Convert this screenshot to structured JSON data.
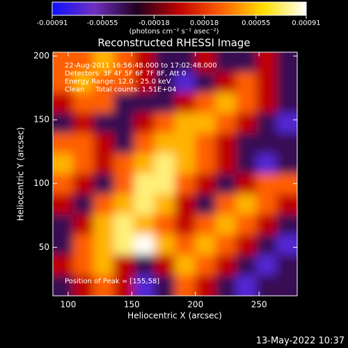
{
  "chart_data": {
    "type": "heatmap",
    "title": "Reconstructed RHESSI Image",
    "x_label": "Heliocentric X (arcsec)",
    "y_label": "Heliocentric Y (arcsec)",
    "colorbar_label": "(photons cm⁻² s⁻¹ asec⁻²)",
    "annotations": [
      "22-Aug-2011 16:56:48.000 to 17:02:48.000",
      "Detectors: 3F 4F 5F 6F 7F 8F, Att 0",
      "Energy Range: 12.0 - 25.0 keV",
      "Clean     Total counts: 1.51E+04"
    ],
    "peak_label": "Position of Peak = [155,58]",
    "footer": "13-May-2022 10:37",
    "xlim": [
      88,
      280
    ],
    "ylim": [
      12,
      203
    ],
    "xticks": [
      100,
      150,
      200,
      250
    ],
    "yticks": [
      50,
      100,
      150,
      200
    ],
    "clim": [
      -0.00091,
      0.00091
    ],
    "cticks": [
      -0.00091,
      -0.00055,
      -0.00018,
      0.00018,
      0.00055,
      0.00091
    ],
    "colormap": [
      "#1010ff",
      "#7030c0",
      "#200020",
      "#c00000",
      "#ff6000",
      "#ffe000",
      "#ffffff"
    ],
    "z": [
      [
        0.0003,
        0.0003,
        0.0005,
        0.0003,
        0,
        -0.0004,
        -0.0004,
        0,
        -0.0004,
        -0.0004,
        0,
        -0.0004
      ],
      [
        0.0003,
        0.0005,
        0.0003,
        0.0003,
        0,
        -0.0004,
        -0.0007,
        -0.0004,
        0,
        0.0003,
        0,
        -0.0004
      ],
      [
        0,
        0.0003,
        0.0003,
        -0.0004,
        -0.0004,
        -0.0004,
        0,
        0.0003,
        0.0005,
        0.0003,
        0,
        -0.0004
      ],
      [
        -0.0004,
        0,
        -0.0004,
        -0.0004,
        0,
        0.0003,
        0.0005,
        0.0005,
        0.0003,
        0,
        -0.0004,
        -0.0007
      ],
      [
        0.0003,
        0.0003,
        0,
        -0.0004,
        0.0003,
        0.0005,
        0.0005,
        0.0003,
        0,
        -0.0004,
        -0.0004,
        -0.0004
      ],
      [
        0.0005,
        0.0003,
        0,
        0.0003,
        0.0005,
        0.00075,
        0.0005,
        0.0003,
        0,
        -0.0004,
        -0.0007,
        -0.0004
      ],
      [
        0.0003,
        0,
        -0.0004,
        0.0003,
        0.00075,
        0.00075,
        0.0003,
        0,
        -0.0004,
        0,
        0.0003,
        0.0003
      ],
      [
        0,
        -0.0004,
        0.0003,
        0.0005,
        0.00075,
        0.0005,
        0,
        -0.0004,
        0.0003,
        0.0005,
        0.0003,
        0
      ],
      [
        -0.0004,
        0,
        0.0005,
        0.00075,
        0.0005,
        0.0003,
        0,
        0.0003,
        0.0005,
        0.0003,
        0,
        -0.0004
      ],
      [
        -0.0004,
        0.0003,
        0.0005,
        0.00075,
        0.0009,
        0.0005,
        0.0003,
        0.0005,
        0.0003,
        0,
        -0.0004,
        -0.0007
      ],
      [
        0,
        0.0003,
        0.0005,
        0,
        -0.0004,
        0,
        0.0005,
        0.0003,
        0,
        -0.0004,
        -0.0007,
        -0.0004
      ],
      [
        -0.0004,
        0,
        0.0003,
        0,
        -0.0007,
        -0.0004,
        0.0003,
        0,
        -0.0004,
        -0.0007,
        -0.0004,
        -0.0004
      ]
    ]
  }
}
